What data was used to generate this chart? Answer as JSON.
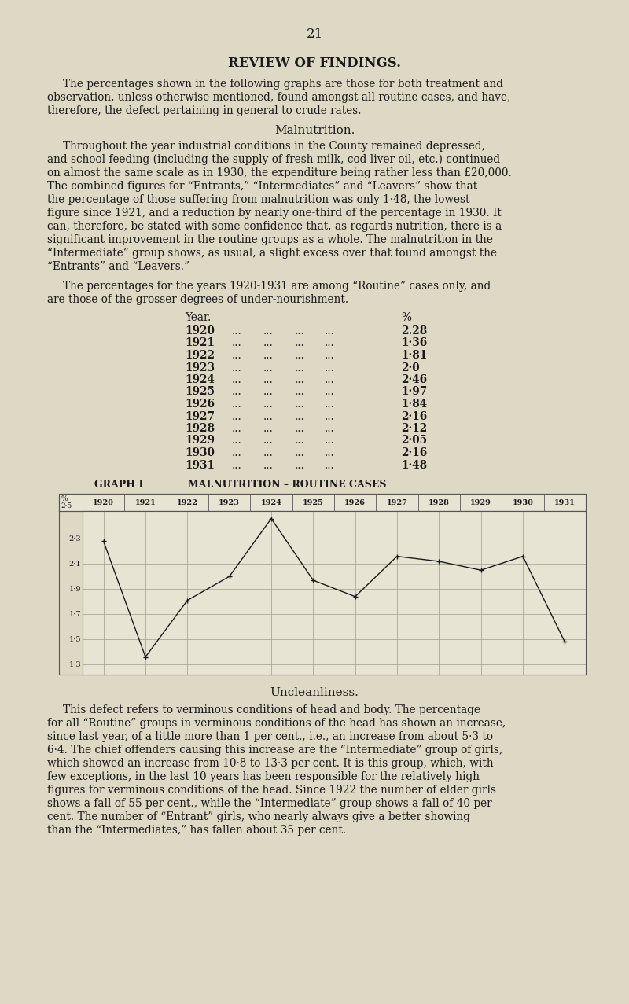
{
  "page_number": "21",
  "title": "REVIEW OF FINDINGS.",
  "intro_lines": [
    "The percentages shown in the following graphs are those for both treatment and",
    "observation, unless otherwise mentioned, found amongst all routine cases, and have,",
    "therefore, the defect pertaining in general to crude rates."
  ],
  "malnutrition_heading": "Malnutrition.",
  "malnutrition_lines": [
    "Throughout the year industrial conditions in the County remained depressed,",
    "and school feeding (including the supply of fresh milk, cod liver oil, etc.) continued",
    "on almost the same scale as in 1930, the expenditure being rather less than £20,000.",
    "The combined figures for “Entrants,” “Intermediates” and “Leavers” show that",
    "the percentage of those suffering from malnutrition was only 1·48, the lowest",
    "figure since 1921, and a reduction by nearly one-third of the percentage in 1930. It",
    "can, therefore, be stated with some confidence that, as regards nutrition, there is a",
    "significant improvement in the routine groups as a whole. The malnutrition in the",
    "“Intermediate” group shows, as usual, a slight excess over that found amongst the",
    "“Entrants” and “Leavers.”"
  ],
  "table_intro_lines": [
    "The percentages for the years 1920-1931 are among “Routine” cases only, and",
    "are those of the grosser degrees of under-nourishment."
  ],
  "years": [
    1920,
    1921,
    1922,
    1923,
    1924,
    1925,
    1926,
    1927,
    1928,
    1929,
    1930,
    1931
  ],
  "percentages": [
    2.28,
    1.36,
    1.81,
    2.0,
    2.46,
    1.97,
    1.84,
    2.16,
    2.12,
    2.05,
    2.16,
    1.48
  ],
  "table_pct_display": [
    "2.28",
    "1·36",
    "1·81",
    "2·0",
    "2·46",
    "1·97",
    "1·84",
    "2·16",
    "2·12",
    "2·05",
    "2·16",
    "1·48"
  ],
  "graph_label": "GRAPH I",
  "graph_title": "MALNUTRITION – ROUTINE CASES",
  "graph_yticks": [
    1.3,
    1.5,
    1.7,
    1.9,
    2.1,
    2.3
  ],
  "graph_ytick_labels": [
    "1·3",
    "1·5",
    "1·7",
    "1·9",
    "2·1",
    "2·3"
  ],
  "uncleanliness_heading": "Uncleanliness.",
  "uncleanliness_lines": [
    "This defect refers to verminous conditions of head and body. The percentage",
    "for all “Routine” groups in verminous conditions of the head has shown an increase,",
    "since last year, of a little more than 1 per cent., i.e., an increase from about 5·3 to",
    "6·4. The chief offenders causing this increase are the “Intermediate” group of girls,",
    "which showed an increase from 10·8 to 13·3 per cent. It is this group, which, with",
    "few exceptions, in the last 10 years has been responsible for the relatively high",
    "figures for verminous conditions of the head. Since 1922 the number of elder girls",
    "shows a fall of 55 per cent., while the “Intermediate” group shows a fall of 40 per",
    "cent. The number of “Entrant” girls, who nearly always give a better showing",
    "than the “Intermediates,” has fallen about 35 per cent."
  ],
  "bg_color": "#ddd9c4",
  "text_color": "#1a1a1a",
  "graph_bg": "#e8e4d4",
  "line_color": "#1a1a1a",
  "grid_color": "#aaa89a",
  "graph_border_color": "#555555"
}
